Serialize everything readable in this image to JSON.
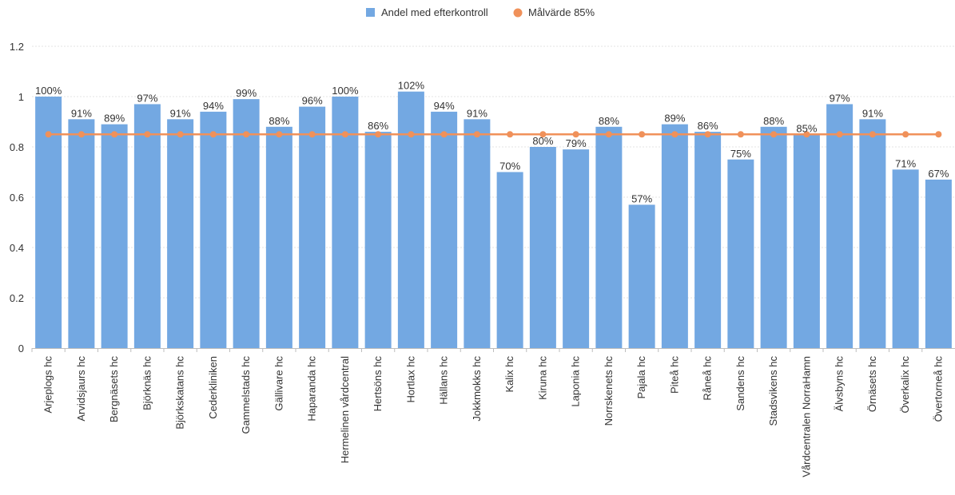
{
  "chart_data": {
    "type": "bar",
    "categories": [
      "Arjeplogs hc",
      "Arvidsjaurs hc",
      "Bergnäsets hc",
      "Björknäs hc",
      "Björkskatans hc",
      "Cederkliniken",
      "Gammelstads hc",
      "Gällivare hc",
      "Haparanda hc",
      "Hermelinen vårdcentral",
      "Hertsöns hc",
      "Hortlax hc",
      "Hällans hc",
      "Jokkmokks hc",
      "Kalix hc",
      "Kiruna hc",
      "Laponia hc",
      "Norrskenets hc",
      "Pajala hc",
      "Piteå hc",
      "Råneå hc",
      "Sandens hc",
      "Stadsvikens hc",
      "Vårdcentralen NorraHamn",
      "Älvsbyns hc",
      "Örnäsets hc",
      "Överkalix hc",
      "Övertorneå hc"
    ],
    "series": [
      {
        "name": "Andel med efterkontroll",
        "kind": "bar",
        "color": "#73a8e2",
        "values": [
          1.0,
          0.91,
          0.89,
          0.97,
          0.91,
          0.94,
          0.99,
          0.88,
          0.96,
          1.0,
          0.86,
          1.02,
          0.94,
          0.91,
          0.7,
          0.8,
          0.79,
          0.88,
          0.57,
          0.89,
          0.86,
          0.75,
          0.88,
          0.85,
          0.97,
          0.91,
          0.71,
          0.67
        ],
        "labels": [
          "100%",
          "91%",
          "89%",
          "97%",
          "91%",
          "94%",
          "99%",
          "88%",
          "96%",
          "100%",
          "86%",
          "102%",
          "94%",
          "91%",
          "70%",
          "80%",
          "79%",
          "88%",
          "57%",
          "89%",
          "86%",
          "75%",
          "88%",
          "85%",
          "97%",
          "91%",
          "71%",
          "67%"
        ]
      },
      {
        "name": "Målvärde 85%",
        "kind": "line",
        "color": "#f0915a",
        "values": [
          0.85,
          0.85,
          0.85,
          0.85,
          0.85,
          0.85,
          0.85,
          0.85,
          0.85,
          0.85,
          0.85,
          0.85,
          0.85,
          0.85,
          0.85,
          0.85,
          0.85,
          0.85,
          0.85,
          0.85,
          0.85,
          0.85,
          0.85,
          0.85,
          0.85,
          0.85,
          0.85,
          0.85
        ]
      }
    ],
    "yticks": [
      "0",
      "0.2",
      "0.4",
      "0.6",
      "0.8",
      "1",
      "1.2"
    ],
    "ylim": [
      0,
      1.2
    ],
    "grid": true,
    "legend_position": "top-center",
    "title": "",
    "xlabel": "",
    "ylabel": ""
  }
}
